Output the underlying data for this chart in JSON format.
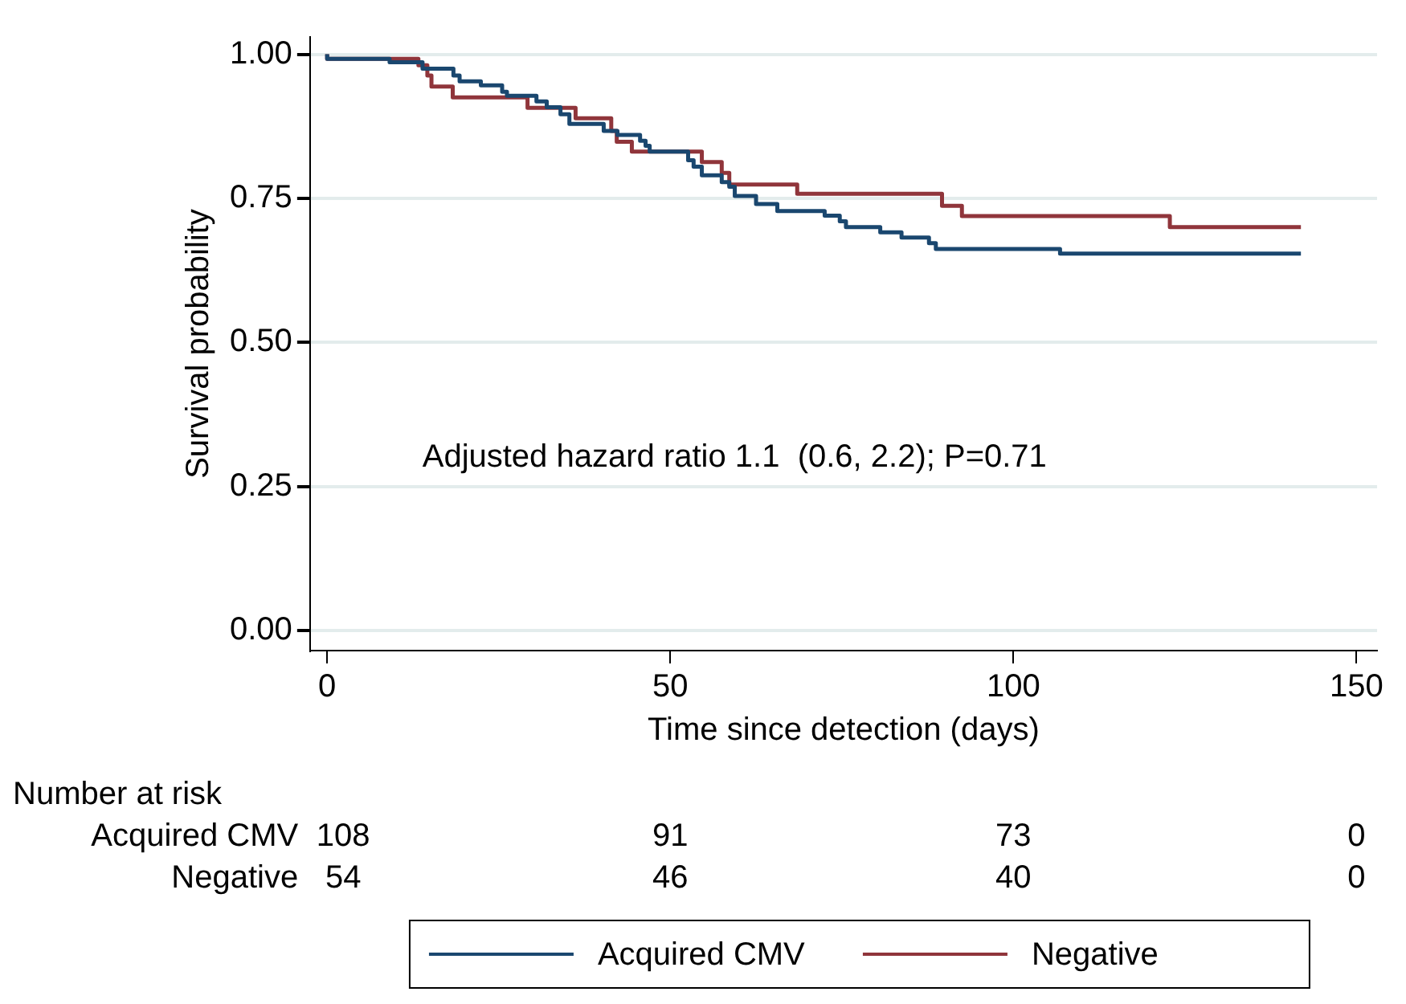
{
  "chart_data": {
    "type": "step",
    "xlabel": "Time since detection (days)",
    "ylabel": "Survival probability",
    "xlim": [
      -2.5,
      153
    ],
    "xticks": [
      0,
      50,
      100,
      150
    ],
    "ylim": [
      -0.035,
      1.03
    ],
    "yticks": [
      {
        "value": 0,
        "label": "0.00"
      },
      {
        "value": 0.25,
        "label": "0.25"
      },
      {
        "value": 0.5,
        "label": "0.50"
      },
      {
        "value": 0.75,
        "label": "0.75"
      },
      {
        "value": 1,
        "label": "1.00"
      }
    ],
    "grid": "y",
    "legend": "bottom",
    "marker": "none",
    "line_style": "solid",
    "series": [
      {
        "name": "Acquired CMV",
        "color": "#1a476f",
        "x": [
          0,
          9.1,
          13.9,
          18.4,
          19.3,
          22.4,
          25.5,
          26.2,
          30.5,
          32,
          34,
          35.3,
          40.3,
          42.3,
          45.6,
          46.4,
          47,
          52.6,
          53.4,
          54.6,
          57.5,
          58.6,
          59.4,
          62.5,
          65.6,
          72.5,
          74.7,
          75.6,
          80.6,
          83.7,
          87.7,
          88.7,
          106.8,
          115.7,
          141.9
        ],
        "values": [
          1,
          0.992,
          0.986,
          0.975,
          0.963,
          0.953,
          0.946,
          0.935,
          0.928,
          0.918,
          0.908,
          0.896,
          0.879,
          0.867,
          0.86,
          0.85,
          0.841,
          0.831,
          0.816,
          0.805,
          0.79,
          0.778,
          0.77,
          0.754,
          0.74,
          0.728,
          0.72,
          0.71,
          0.7,
          0.691,
          0.682,
          0.672,
          0.662,
          0.654,
          0.654
        ]
      },
      {
        "name": "Negative",
        "color": "#90353b",
        "x": [
          0,
          13.3,
          14.6,
          15.2,
          18.3,
          29.2,
          36.2,
          41.4,
          42.2,
          44.4,
          54.6,
          57.5,
          58.6,
          68.5,
          89.6,
          92.5,
          122.8,
          135.7,
          141.9
        ],
        "values": [
          1,
          0.992,
          0.981,
          0.963,
          0.944,
          0.925,
          0.907,
          0.889,
          0.867,
          0.848,
          0.831,
          0.813,
          0.794,
          0.774,
          0.758,
          0.737,
          0.719,
          0.7,
          0.7
        ]
      }
    ],
    "annotations": [
      "Adjusted hazard ratio 1.1  (0.6, 2.2); P=0.71",
      "Number at risk",
      "Acquired CMV",
      "108",
      "91",
      "73",
      "0",
      "Negative",
      "54",
      "46",
      "40",
      "0"
    ]
  }
}
